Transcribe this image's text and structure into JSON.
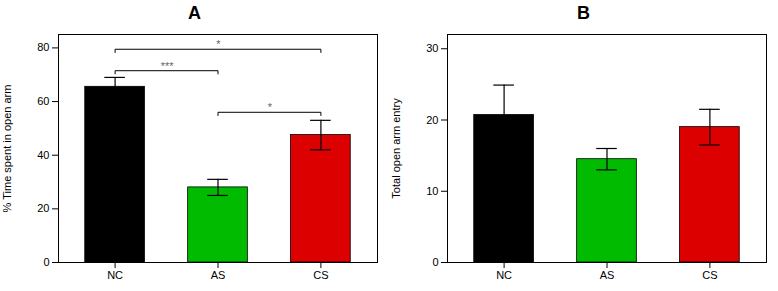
{
  "chart_data": [
    {
      "type": "bar",
      "title": "A",
      "categories": [
        "NC",
        "AS",
        "CS"
      ],
      "values": [
        65.5,
        28.0,
        47.5
      ],
      "errors": [
        3.5,
        3.0,
        5.5
      ],
      "colors": [
        "#000000",
        "#00bb00",
        "#dd0000"
      ],
      "ylabel": "% Time spent in open arm",
      "ylim": [
        0,
        85
      ],
      "yticks": [
        0,
        20,
        40,
        60,
        80
      ],
      "grid": false,
      "annotations": [
        {
          "x1": "NC",
          "x2": "AS",
          "y": 71.5,
          "label": "***"
        },
        {
          "x1": "NC",
          "x2": "CS",
          "y": 79.5,
          "label": "*"
        },
        {
          "x1": "AS",
          "x2": "CS",
          "y": 56.0,
          "label": "*"
        }
      ]
    },
    {
      "type": "bar",
      "title": "B",
      "categories": [
        "NC",
        "AS",
        "CS"
      ],
      "values": [
        20.7,
        14.5,
        19.0
      ],
      "errors": [
        4.2,
        1.5,
        2.5
      ],
      "colors": [
        "#000000",
        "#00bb00",
        "#dd0000"
      ],
      "ylabel": "Total open arm entry",
      "ylim": [
        0,
        32
      ],
      "yticks": [
        0,
        10,
        20,
        30
      ],
      "grid": false
    }
  ]
}
